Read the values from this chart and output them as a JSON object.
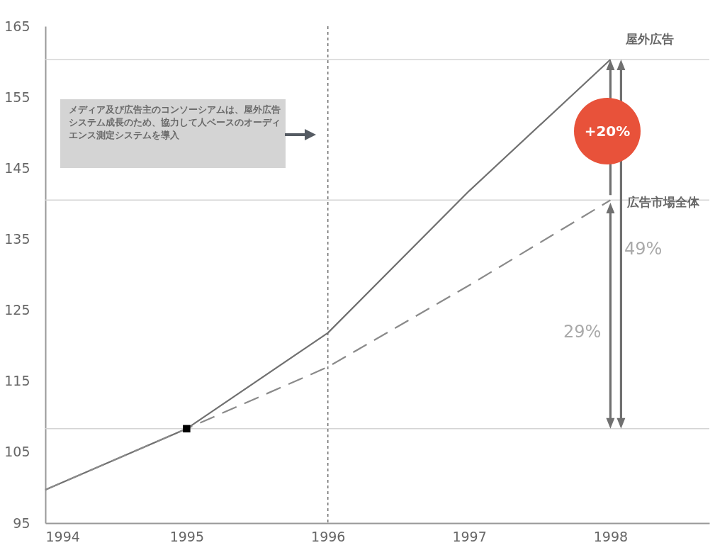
{
  "chart_data": {
    "type": "line",
    "x": [
      1994,
      1995,
      1996,
      1997,
      1998
    ],
    "xlim": [
      1994,
      1998.7
    ],
    "xticks": [
      1994,
      1995,
      1996,
      1997,
      1998
    ],
    "ylim": [
      95,
      165
    ],
    "yticks": [
      95,
      105,
      115,
      125,
      135,
      145,
      155,
      165
    ],
    "series": [
      {
        "name": "屋外広告",
        "color": "#707070",
        "line_style": "solid",
        "values": [
          99.7,
          108.3,
          121.8,
          141.8,
          160.3
        ]
      },
      {
        "name": "広告市場全体",
        "color": "#8a8a8a",
        "line_style": "dashed",
        "values": [
          99.7,
          108.3,
          117,
          128.5,
          140.5
        ]
      },
      {
        "type": "scatter",
        "marker": "square",
        "color": "#000000",
        "x": [
          1995
        ],
        "values": [
          108.3
        ]
      }
    ],
    "ref_lines": [
      {
        "axis": "y",
        "value": 160.3,
        "color": "#d4d4d4",
        "line_style": "solid"
      },
      {
        "axis": "y",
        "value": 140.5,
        "color": "#d4d4d4",
        "line_style": "solid"
      },
      {
        "axis": "y",
        "value": 108.3,
        "color": "#d4d4d4",
        "line_style": "solid"
      },
      {
        "axis": "x",
        "value": 1996,
        "color": "#707070",
        "line_style": "dotted"
      }
    ],
    "annotations": [
      "メディア及び広告主のコンソーシアムは、屋外広告システム成長のため、協力して人ベースのオーディエンス測定システムを導入",
      "+20%",
      "49%",
      "29%"
    ],
    "grid": false,
    "legend": false,
    "marker": "none"
  }
}
